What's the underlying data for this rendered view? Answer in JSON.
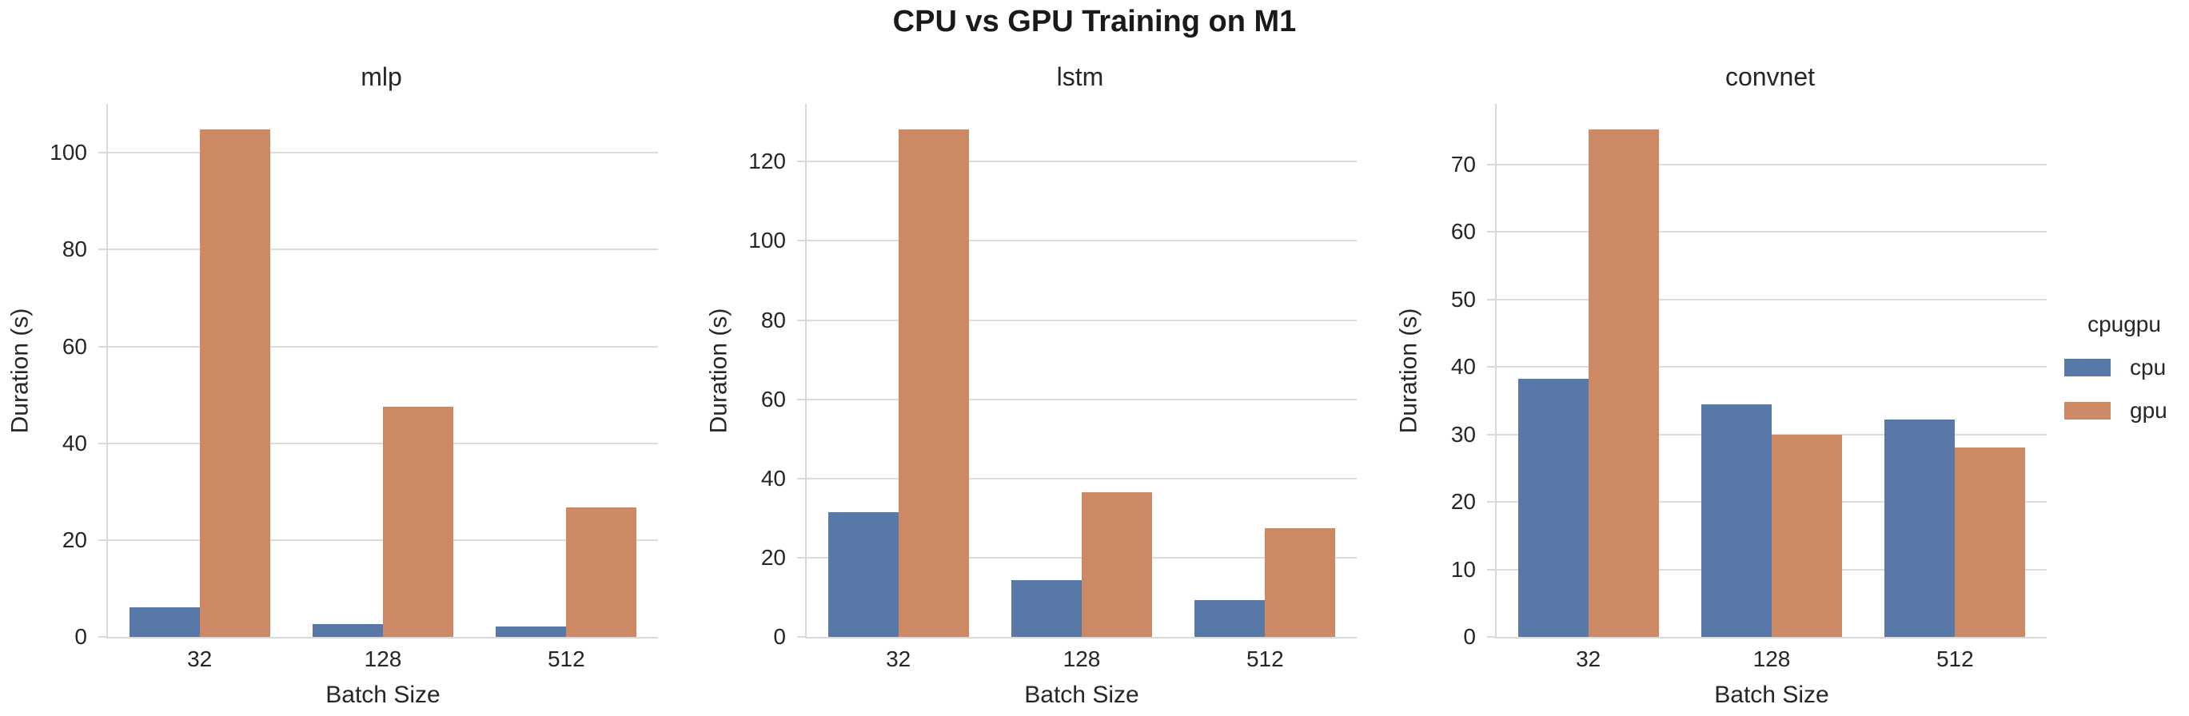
{
  "suptitle": "CPU vs GPU Training on M1",
  "colors": {
    "cpu": "#5878a8",
    "gpu": "#cc8963",
    "grid": "#dcdcdc",
    "spine": "#d9d9d9",
    "text": "#262626"
  },
  "legend": {
    "title": "cpugpu",
    "items": [
      {
        "label": "cpu",
        "color_key": "cpu"
      },
      {
        "label": "gpu",
        "color_key": "gpu"
      }
    ]
  },
  "chart_data": [
    {
      "type": "bar",
      "title": "mlp",
      "xlabel": "Batch Size",
      "ylabel": "Duration (s)",
      "categories": [
        "32",
        "128",
        "512"
      ],
      "series": [
        {
          "name": "cpu",
          "values": [
            6.1,
            2.7,
            2.2
          ]
        },
        {
          "name": "gpu",
          "values": [
            104.8,
            47.5,
            26.7
          ]
        }
      ],
      "yticks": [
        0,
        20,
        40,
        60,
        80,
        100
      ],
      "ylim": [
        0,
        110.1
      ],
      "grid": true,
      "legend_position": "outside center right"
    },
    {
      "type": "bar",
      "title": "lstm",
      "xlabel": "Batch Size",
      "ylabel": "Duration (s)",
      "categories": [
        "32",
        "128",
        "512"
      ],
      "series": [
        {
          "name": "cpu",
          "values": [
            31.4,
            14.4,
            9.3
          ]
        },
        {
          "name": "gpu",
          "values": [
            128.2,
            36.6,
            27.5
          ]
        }
      ],
      "yticks": [
        0,
        20,
        40,
        60,
        80,
        100,
        120
      ],
      "ylim": [
        0,
        134.6
      ],
      "grid": true,
      "legend_position": "outside center right"
    },
    {
      "type": "bar",
      "title": "convnet",
      "xlabel": "Batch Size",
      "ylabel": "Duration (s)",
      "categories": [
        "32",
        "128",
        "512"
      ],
      "series": [
        {
          "name": "cpu",
          "values": [
            38.2,
            34.5,
            32.2
          ]
        },
        {
          "name": "gpu",
          "values": [
            75.2,
            30.0,
            28.1
          ]
        }
      ],
      "yticks": [
        0,
        10,
        20,
        30,
        40,
        50,
        60,
        70
      ],
      "ylim": [
        0,
        79.0
      ],
      "grid": true,
      "legend_position": "outside center right"
    }
  ]
}
